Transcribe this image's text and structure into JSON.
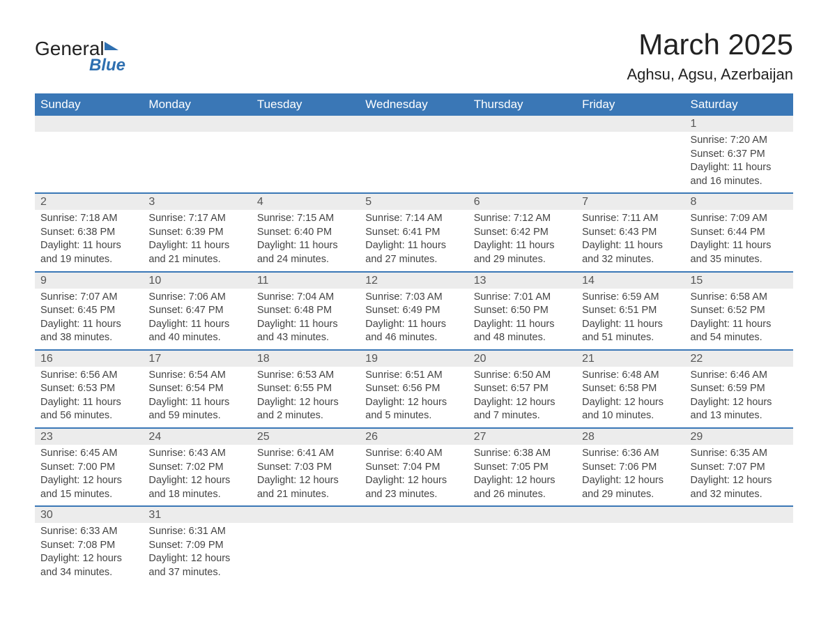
{
  "logo": {
    "word1": "General",
    "word2": "Blue"
  },
  "title": "March 2025",
  "location": "Aghsu, Agsu, Azerbaijan",
  "colors": {
    "header_bg": "#3a77b6",
    "header_text": "#ffffff",
    "daynum_bg": "#ececec",
    "row_border": "#3a77b6",
    "body_text": "#444444",
    "page_bg": "#ffffff"
  },
  "day_headers": [
    "Sunday",
    "Monday",
    "Tuesday",
    "Wednesday",
    "Thursday",
    "Friday",
    "Saturday"
  ],
  "weeks": [
    [
      null,
      null,
      null,
      null,
      null,
      null,
      {
        "n": "1",
        "sr": "Sunrise: 7:20 AM",
        "ss": "Sunset: 6:37 PM",
        "d1": "Daylight: 11 hours",
        "d2": "and 16 minutes."
      }
    ],
    [
      {
        "n": "2",
        "sr": "Sunrise: 7:18 AM",
        "ss": "Sunset: 6:38 PM",
        "d1": "Daylight: 11 hours",
        "d2": "and 19 minutes."
      },
      {
        "n": "3",
        "sr": "Sunrise: 7:17 AM",
        "ss": "Sunset: 6:39 PM",
        "d1": "Daylight: 11 hours",
        "d2": "and 21 minutes."
      },
      {
        "n": "4",
        "sr": "Sunrise: 7:15 AM",
        "ss": "Sunset: 6:40 PM",
        "d1": "Daylight: 11 hours",
        "d2": "and 24 minutes."
      },
      {
        "n": "5",
        "sr": "Sunrise: 7:14 AM",
        "ss": "Sunset: 6:41 PM",
        "d1": "Daylight: 11 hours",
        "d2": "and 27 minutes."
      },
      {
        "n": "6",
        "sr": "Sunrise: 7:12 AM",
        "ss": "Sunset: 6:42 PM",
        "d1": "Daylight: 11 hours",
        "d2": "and 29 minutes."
      },
      {
        "n": "7",
        "sr": "Sunrise: 7:11 AM",
        "ss": "Sunset: 6:43 PM",
        "d1": "Daylight: 11 hours",
        "d2": "and 32 minutes."
      },
      {
        "n": "8",
        "sr": "Sunrise: 7:09 AM",
        "ss": "Sunset: 6:44 PM",
        "d1": "Daylight: 11 hours",
        "d2": "and 35 minutes."
      }
    ],
    [
      {
        "n": "9",
        "sr": "Sunrise: 7:07 AM",
        "ss": "Sunset: 6:45 PM",
        "d1": "Daylight: 11 hours",
        "d2": "and 38 minutes."
      },
      {
        "n": "10",
        "sr": "Sunrise: 7:06 AM",
        "ss": "Sunset: 6:47 PM",
        "d1": "Daylight: 11 hours",
        "d2": "and 40 minutes."
      },
      {
        "n": "11",
        "sr": "Sunrise: 7:04 AM",
        "ss": "Sunset: 6:48 PM",
        "d1": "Daylight: 11 hours",
        "d2": "and 43 minutes."
      },
      {
        "n": "12",
        "sr": "Sunrise: 7:03 AM",
        "ss": "Sunset: 6:49 PM",
        "d1": "Daylight: 11 hours",
        "d2": "and 46 minutes."
      },
      {
        "n": "13",
        "sr": "Sunrise: 7:01 AM",
        "ss": "Sunset: 6:50 PM",
        "d1": "Daylight: 11 hours",
        "d2": "and 48 minutes."
      },
      {
        "n": "14",
        "sr": "Sunrise: 6:59 AM",
        "ss": "Sunset: 6:51 PM",
        "d1": "Daylight: 11 hours",
        "d2": "and 51 minutes."
      },
      {
        "n": "15",
        "sr": "Sunrise: 6:58 AM",
        "ss": "Sunset: 6:52 PM",
        "d1": "Daylight: 11 hours",
        "d2": "and 54 minutes."
      }
    ],
    [
      {
        "n": "16",
        "sr": "Sunrise: 6:56 AM",
        "ss": "Sunset: 6:53 PM",
        "d1": "Daylight: 11 hours",
        "d2": "and 56 minutes."
      },
      {
        "n": "17",
        "sr": "Sunrise: 6:54 AM",
        "ss": "Sunset: 6:54 PM",
        "d1": "Daylight: 11 hours",
        "d2": "and 59 minutes."
      },
      {
        "n": "18",
        "sr": "Sunrise: 6:53 AM",
        "ss": "Sunset: 6:55 PM",
        "d1": "Daylight: 12 hours",
        "d2": "and 2 minutes."
      },
      {
        "n": "19",
        "sr": "Sunrise: 6:51 AM",
        "ss": "Sunset: 6:56 PM",
        "d1": "Daylight: 12 hours",
        "d2": "and 5 minutes."
      },
      {
        "n": "20",
        "sr": "Sunrise: 6:50 AM",
        "ss": "Sunset: 6:57 PM",
        "d1": "Daylight: 12 hours",
        "d2": "and 7 minutes."
      },
      {
        "n": "21",
        "sr": "Sunrise: 6:48 AM",
        "ss": "Sunset: 6:58 PM",
        "d1": "Daylight: 12 hours",
        "d2": "and 10 minutes."
      },
      {
        "n": "22",
        "sr": "Sunrise: 6:46 AM",
        "ss": "Sunset: 6:59 PM",
        "d1": "Daylight: 12 hours",
        "d2": "and 13 minutes."
      }
    ],
    [
      {
        "n": "23",
        "sr": "Sunrise: 6:45 AM",
        "ss": "Sunset: 7:00 PM",
        "d1": "Daylight: 12 hours",
        "d2": "and 15 minutes."
      },
      {
        "n": "24",
        "sr": "Sunrise: 6:43 AM",
        "ss": "Sunset: 7:02 PM",
        "d1": "Daylight: 12 hours",
        "d2": "and 18 minutes."
      },
      {
        "n": "25",
        "sr": "Sunrise: 6:41 AM",
        "ss": "Sunset: 7:03 PM",
        "d1": "Daylight: 12 hours",
        "d2": "and 21 minutes."
      },
      {
        "n": "26",
        "sr": "Sunrise: 6:40 AM",
        "ss": "Sunset: 7:04 PM",
        "d1": "Daylight: 12 hours",
        "d2": "and 23 minutes."
      },
      {
        "n": "27",
        "sr": "Sunrise: 6:38 AM",
        "ss": "Sunset: 7:05 PM",
        "d1": "Daylight: 12 hours",
        "d2": "and 26 minutes."
      },
      {
        "n": "28",
        "sr": "Sunrise: 6:36 AM",
        "ss": "Sunset: 7:06 PM",
        "d1": "Daylight: 12 hours",
        "d2": "and 29 minutes."
      },
      {
        "n": "29",
        "sr": "Sunrise: 6:35 AM",
        "ss": "Sunset: 7:07 PM",
        "d1": "Daylight: 12 hours",
        "d2": "and 32 minutes."
      }
    ],
    [
      {
        "n": "30",
        "sr": "Sunrise: 6:33 AM",
        "ss": "Sunset: 7:08 PM",
        "d1": "Daylight: 12 hours",
        "d2": "and 34 minutes."
      },
      {
        "n": "31",
        "sr": "Sunrise: 6:31 AM",
        "ss": "Sunset: 7:09 PM",
        "d1": "Daylight: 12 hours",
        "d2": "and 37 minutes."
      },
      null,
      null,
      null,
      null,
      null
    ]
  ]
}
